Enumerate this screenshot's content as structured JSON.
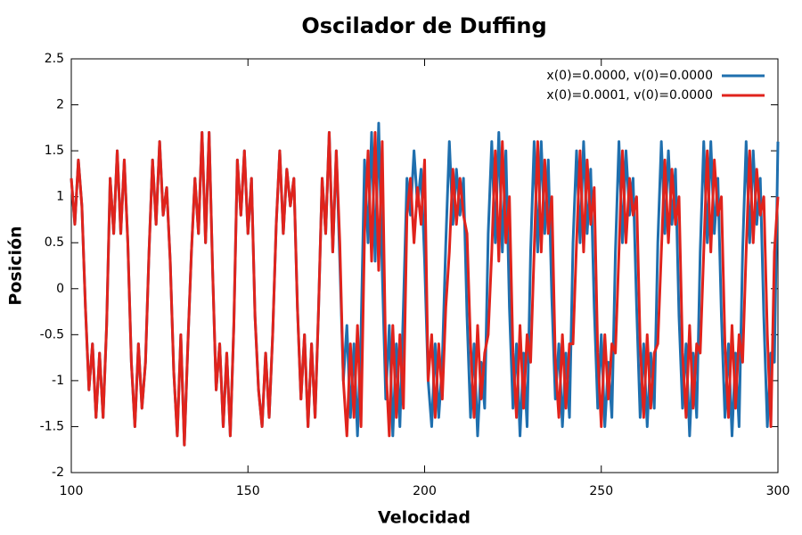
{
  "chart_data": {
    "type": "line",
    "title": "Oscilador de Duffing",
    "x_label": "Velocidad",
    "y_label": "Posición",
    "xlim": [
      100,
      300
    ],
    "xticks": [
      100,
      150,
      200,
      250,
      300
    ],
    "ylim": [
      -2,
      2.5
    ],
    "yticks": [
      -2,
      -1.5,
      -1,
      -0.5,
      0,
      0.5,
      1,
      1.5,
      2,
      2.5
    ],
    "grid": false,
    "legend": "top-right",
    "x": [
      100,
      101,
      102,
      103,
      104,
      105,
      106,
      107,
      108,
      109,
      110,
      111,
      112,
      113,
      114,
      115,
      116,
      117,
      118,
      119,
      120,
      121,
      122,
      123,
      124,
      125,
      126,
      127,
      128,
      129,
      130,
      131,
      132,
      133,
      134,
      135,
      136,
      137,
      138,
      139,
      140,
      141,
      142,
      143,
      144,
      145,
      146,
      147,
      148,
      149,
      150,
      151,
      152,
      153,
      154,
      155,
      156,
      157,
      158,
      159,
      160,
      161,
      162,
      163,
      164,
      165,
      166,
      167,
      168,
      169,
      170,
      171,
      172,
      173,
      174,
      175,
      176,
      177,
      178,
      179,
      180,
      181,
      182,
      183,
      184,
      185,
      186,
      187,
      188,
      189,
      190,
      191,
      192,
      193,
      194,
      195,
      196,
      197,
      198,
      199,
      200,
      201,
      202,
      203,
      204,
      205,
      206,
      207,
      208,
      209,
      210,
      211,
      212,
      213,
      214,
      215,
      216,
      217,
      218,
      219,
      220,
      221,
      222,
      223,
      224,
      225,
      226,
      227,
      228,
      229,
      230,
      231,
      232,
      233,
      234,
      235,
      236,
      237,
      238,
      239,
      240,
      241,
      242,
      243,
      244,
      245,
      246,
      247,
      248,
      249,
      250,
      251,
      252,
      253,
      254,
      255,
      256,
      257,
      258,
      259,
      260,
      261,
      262,
      263,
      264,
      265,
      266,
      267,
      268,
      269,
      270,
      271,
      272,
      273,
      274,
      275,
      276,
      277,
      278,
      279,
      280,
      281,
      282,
      283,
      284,
      285,
      286,
      287,
      288,
      289,
      290,
      291,
      292,
      293,
      294,
      295,
      296,
      297,
      298,
      299,
      300
    ],
    "series": [
      {
        "name": "x(0)=0.0000, v(0)=0.0000",
        "color": "#1f6fae",
        "values": [
          1.2,
          0.7,
          1.4,
          0.9,
          -0.2,
          -1.1,
          -0.6,
          -1.4,
          -0.7,
          -1.4,
          -0.4,
          1.2,
          0.6,
          1.5,
          0.6,
          1.4,
          0.5,
          -0.8,
          -1.5,
          -0.6,
          -1.3,
          -0.8,
          0.4,
          1.4,
          0.7,
          1.6,
          0.8,
          1.1,
          0.3,
          -0.9,
          -1.6,
          -0.5,
          -1.7,
          -0.6,
          0.4,
          1.2,
          0.6,
          1.7,
          0.5,
          1.7,
          0.2,
          -1.1,
          -0.6,
          -1.5,
          -0.7,
          -1.6,
          -0.4,
          1.4,
          0.8,
          1.5,
          0.6,
          1.2,
          -0.3,
          -1.1,
          -1.5,
          -0.7,
          -1.4,
          -0.5,
          0.7,
          1.5,
          0.6,
          1.3,
          0.9,
          1.2,
          -0.2,
          -1.2,
          -0.5,
          -1.5,
          -0.6,
          -1.4,
          -0.2,
          1.2,
          0.6,
          1.7,
          0.4,
          1.5,
          0.3,
          -1.0,
          -0.4,
          -1.4,
          -0.6,
          -1.6,
          -0.5,
          1.4,
          0.5,
          1.7,
          0.3,
          1.8,
          0.2,
          -1.2,
          -0.4,
          -1.6,
          -0.6,
          -1.5,
          -0.2,
          1.2,
          0.8,
          1.5,
          0.9,
          1.3,
          0.3,
          -1.0,
          -1.5,
          -0.6,
          -1.4,
          -0.8,
          0.5,
          1.6,
          0.7,
          1.3,
          0.8,
          1.2,
          -0.3,
          -1.4,
          -0.6,
          -1.6,
          -0.8,
          -1.3,
          0.6,
          1.6,
          0.5,
          1.7,
          0.4,
          1.5,
          -0.2,
          -1.3,
          -0.6,
          -1.6,
          -0.7,
          -1.5,
          0.4,
          1.6,
          0.4,
          1.6,
          0.6,
          1.4,
          -0.1,
          -1.2,
          -0.6,
          -1.5,
          -0.7,
          -1.4,
          0.5,
          1.5,
          0.5,
          1.6,
          0.6,
          1.3,
          -0.2,
          -1.3,
          -0.5,
          -1.5,
          -0.8,
          -1.4,
          0.4,
          1.6,
          0.5,
          1.5,
          0.8,
          1.2,
          -0.2,
          -1.4,
          -0.6,
          -1.5,
          -0.7,
          -1.3,
          0.5,
          1.6,
          0.6,
          1.5,
          0.7,
          1.3,
          -0.3,
          -1.3,
          -0.6,
          -1.6,
          -0.7,
          -1.4,
          0.4,
          1.6,
          0.5,
          1.6,
          0.6,
          1.2,
          -0.3,
          -1.4,
          -0.6,
          -1.6,
          -0.7,
          -1.5,
          0.4,
          1.6,
          0.5,
          1.5,
          0.7,
          1.2,
          -0.3,
          -1.5,
          -0.7,
          -0.8,
          1.6
        ]
      },
      {
        "name": "x(0)=0.0001, v(0)=0.0000",
        "color": "#e0231c",
        "values": [
          1.2,
          0.7,
          1.4,
          0.9,
          -0.2,
          -1.1,
          -0.6,
          -1.4,
          -0.7,
          -1.4,
          -0.4,
          1.2,
          0.6,
          1.5,
          0.6,
          1.4,
          0.5,
          -0.8,
          -1.5,
          -0.6,
          -1.3,
          -0.8,
          0.4,
          1.4,
          0.7,
          1.6,
          0.8,
          1.1,
          0.3,
          -0.9,
          -1.6,
          -0.5,
          -1.7,
          -0.6,
          0.4,
          1.2,
          0.6,
          1.7,
          0.5,
          1.7,
          0.2,
          -1.1,
          -0.6,
          -1.5,
          -0.7,
          -1.6,
          -0.4,
          1.4,
          0.8,
          1.5,
          0.6,
          1.2,
          -0.3,
          -1.1,
          -1.5,
          -0.7,
          -1.4,
          -0.5,
          0.7,
          1.5,
          0.6,
          1.3,
          0.9,
          1.2,
          -0.2,
          -1.2,
          -0.5,
          -1.5,
          -0.6,
          -1.4,
          -0.2,
          1.2,
          0.6,
          1.7,
          0.4,
          1.5,
          0.5,
          -1.0,
          -1.6,
          -0.6,
          -1.4,
          -0.4,
          -1.5,
          0.6,
          1.5,
          0.3,
          1.7,
          0.2,
          1.6,
          -0.8,
          -1.6,
          -0.4,
          -1.4,
          -0.5,
          -1.3,
          0.8,
          1.2,
          0.5,
          1.1,
          0.7,
          1.4,
          -1.0,
          -0.5,
          -1.4,
          -0.6,
          -1.2,
          -0.2,
          0.4,
          1.3,
          0.7,
          1.2,
          0.8,
          0.6,
          -0.6,
          -1.4,
          -0.4,
          -1.2,
          -0.7,
          -0.5,
          0.4,
          1.5,
          0.3,
          1.6,
          0.5,
          1.0,
          -0.7,
          -1.4,
          -0.4,
          -1.3,
          -0.5,
          -0.8,
          0.4,
          1.6,
          0.4,
          1.4,
          0.6,
          1.0,
          -0.8,
          -1.4,
          -0.5,
          -1.3,
          -0.6,
          -0.6,
          0.5,
          1.5,
          0.4,
          1.4,
          0.7,
          1.1,
          -0.7,
          -1.5,
          -0.5,
          -1.2,
          -0.6,
          -0.7,
          0.4,
          1.5,
          0.5,
          1.2,
          0.8,
          1.0,
          -0.6,
          -1.4,
          -0.5,
          -1.3,
          -0.7,
          -0.6,
          0.4,
          1.4,
          0.5,
          1.3,
          0.7,
          1.0,
          -0.7,
          -1.4,
          -0.4,
          -1.3,
          -0.6,
          -0.7,
          0.4,
          1.5,
          0.4,
          1.4,
          0.8,
          1.0,
          -0.6,
          -1.4,
          -0.4,
          -1.3,
          -0.5,
          -0.8,
          0.4,
          1.5,
          0.5,
          1.3,
          0.8,
          1.0,
          -0.5,
          -1.5,
          0.4,
          1.0
        ]
      }
    ]
  }
}
